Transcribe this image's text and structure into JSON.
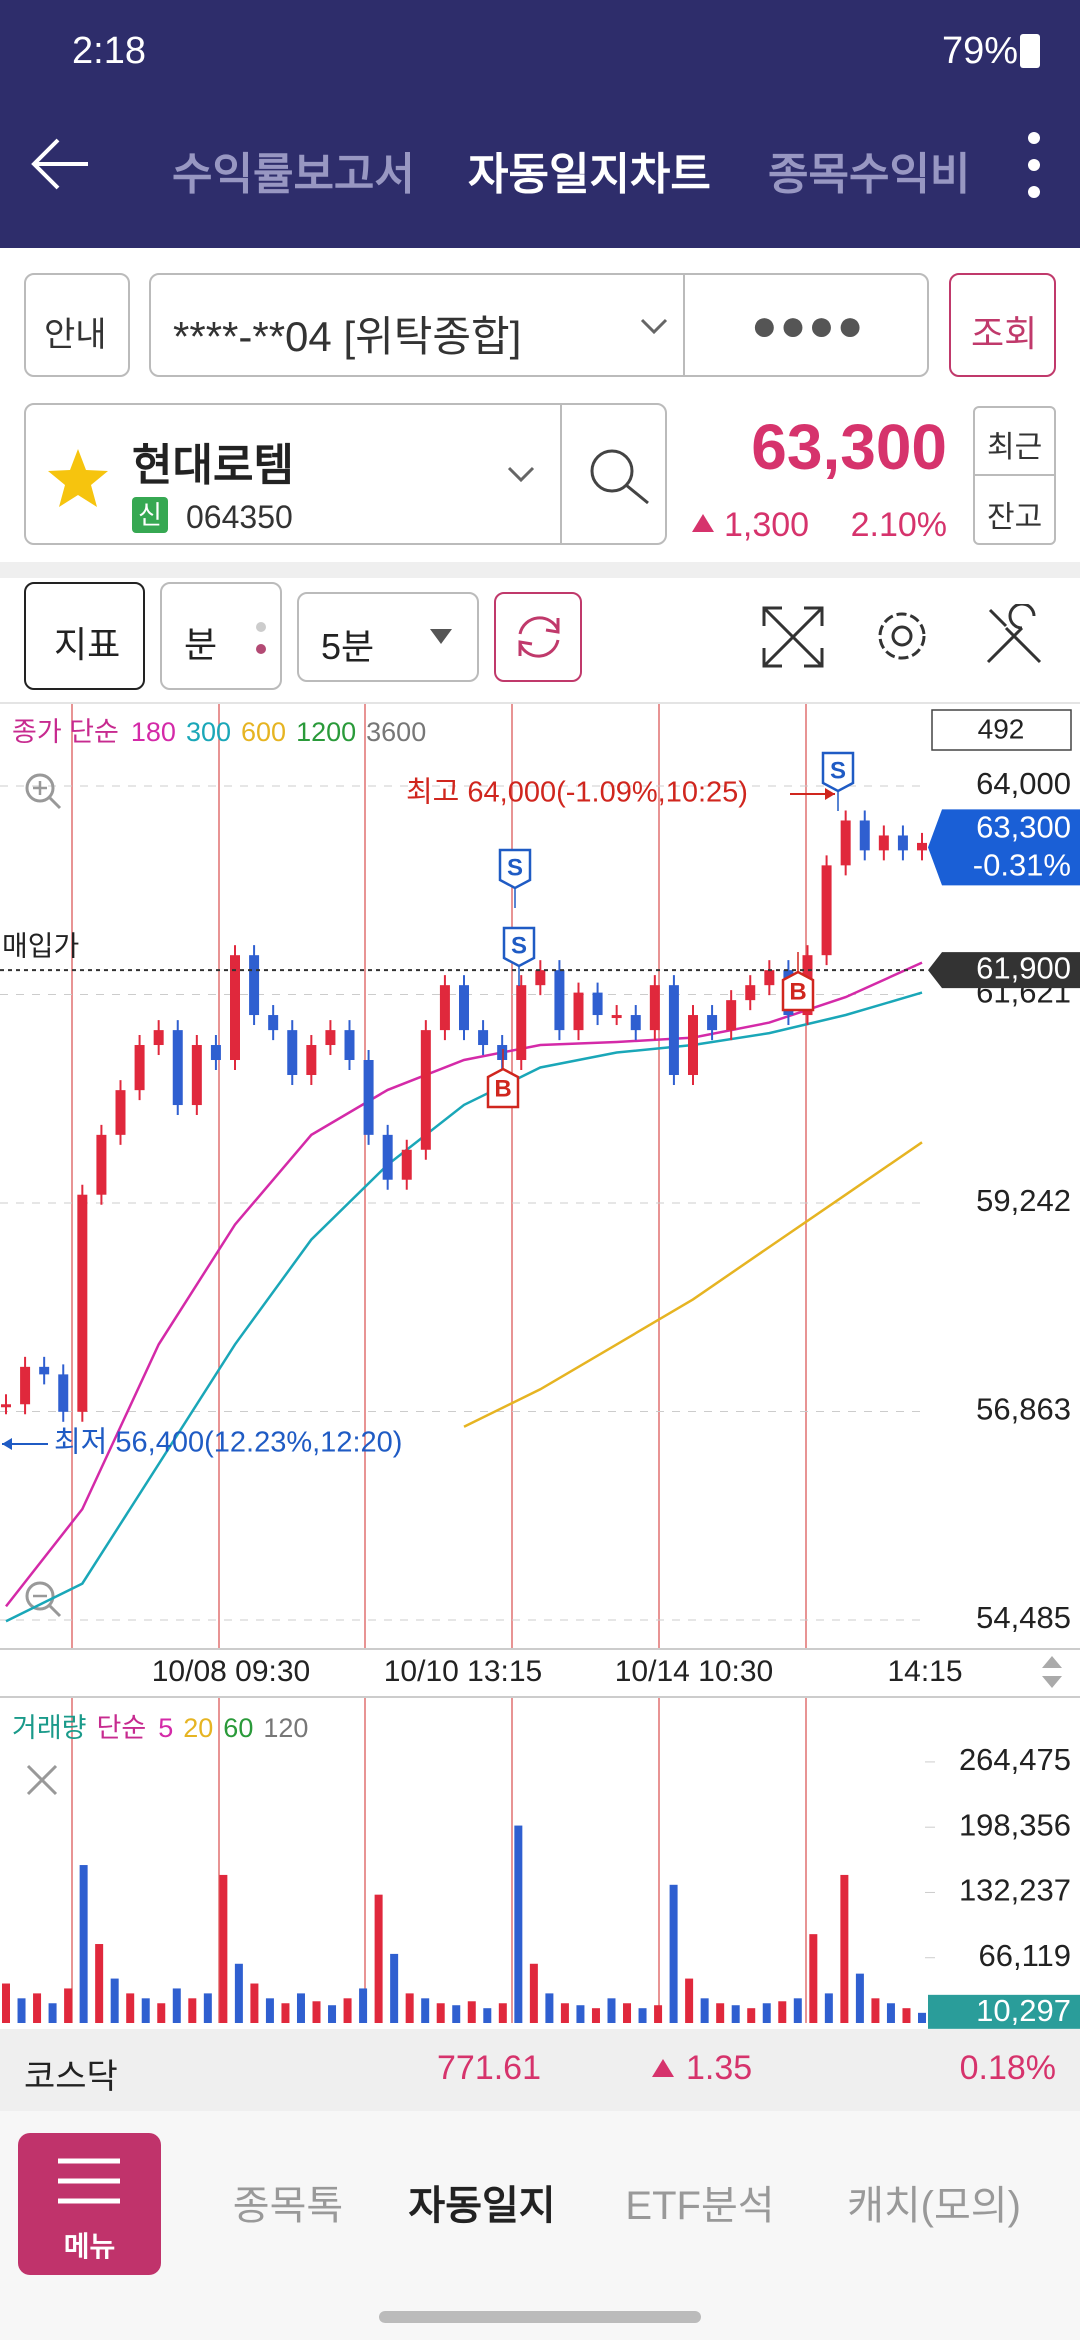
{
  "status_bar": {
    "time": "2:18",
    "battery": "79%"
  },
  "header": {
    "tabs": [
      "수익률보고서",
      "자동일지차트",
      "종목수익비"
    ]
  },
  "account": {
    "guide": "안내",
    "account_no": "****-**04 [위탁종합]",
    "password": "●●●●",
    "query": "조회"
  },
  "stock": {
    "name": "현대로템",
    "badge": "신",
    "code": "064350",
    "price": "63,300",
    "change": "1,300",
    "change_pct": "2.10%",
    "recent": "최근",
    "balance": "잔고"
  },
  "toolbar": {
    "indicator": "지표",
    "unit": "분",
    "interval": "5분"
  },
  "price_chart": {
    "legend_title": "종가 단순",
    "period_box": "492",
    "ylim": [
      54165,
      64936
    ],
    "yticks": [
      {
        "value": 64000,
        "label": "64,000"
      },
      {
        "value": 61621,
        "label": "61,621"
      },
      {
        "value": 59242,
        "label": "59,242"
      },
      {
        "value": 56863,
        "label": "56,863"
      },
      {
        "value": 54485,
        "label": "54,485"
      }
    ],
    "grid": true,
    "up_color": "#e0283c",
    "down_color": "#2f5fd0",
    "candles": [
      56946,
      57373,
      57287,
      56860,
      59337,
      60020,
      60530,
      61045,
      61215,
      60360,
      61045,
      60874,
      62070,
      61387,
      61215,
      60703,
      61045,
      61215,
      60874,
      60020,
      59508,
      59850,
      61215,
      61728,
      61215,
      61045,
      60874,
      61728,
      61899,
      61215,
      61643,
      61387,
      61387,
      61215,
      61728,
      60703,
      61387,
      61215,
      61557,
      61728,
      61899,
      61387,
      62070,
      63095,
      63607,
      63266,
      63436,
      63266,
      63351
    ],
    "ma": [
      {
        "name": "180",
        "color": "#d42aa8",
        "values": [
          54640,
          55750,
          57629,
          58996,
          60020,
          60533,
          60874,
          61045,
          61079,
          61130,
          61301,
          61592,
          61985
        ]
      },
      {
        "name": "300",
        "color": "#1aa7b8",
        "values": [
          54470,
          54900,
          56263,
          57629,
          58825,
          59679,
          60362,
          60789,
          60960,
          61045,
          61181,
          61387,
          61643
        ]
      },
      {
        "name": "600",
        "color": "#e6b422",
        "values": [
          null,
          null,
          null,
          null,
          null,
          null,
          56690,
          57117,
          57629,
          58142,
          58740,
          59337,
          59935
        ]
      },
      {
        "name": "1200",
        "color": "#2a9a3a"
      },
      {
        "name": "3600",
        "color": "#777777"
      }
    ],
    "current": {
      "value": 63300,
      "label": "63,300",
      "change": "-0.31%"
    },
    "purchase": {
      "label": "매입가",
      "value": 61900,
      "value_label": "61,900"
    },
    "high": "최고 64,000(-1.09%,10:25)",
    "low": "최저 56,400(12.23%,12:20)",
    "signals": [
      "S",
      "S",
      "B",
      "B",
      "S"
    ],
    "x_labels": [
      "10/08 09:30",
      "10/10 13:15",
      "10/14 10:30",
      "14:15"
    ]
  },
  "volume_chart": {
    "legend_title": "거래량",
    "legend_kind": "단순",
    "ma": [
      {
        "name": "5",
        "color": "#d42aa8"
      },
      {
        "name": "20",
        "color": "#e6b422"
      },
      {
        "name": "60",
        "color": "#2a9a3a"
      },
      {
        "name": "120",
        "color": "#777777"
      }
    ],
    "ylim": [
      0,
      312000
    ],
    "yticks": [
      {
        "value": 264475,
        "label": "264,475"
      },
      {
        "value": 198356,
        "label": "198,356"
      },
      {
        "value": 132237,
        "label": "132,237"
      },
      {
        "value": 66119,
        "label": "66,119"
      }
    ],
    "values": [
      40000,
      25000,
      30000,
      20000,
      35000,
      160000,
      80000,
      45000,
      30000,
      25000,
      20000,
      35000,
      25000,
      30000,
      150000,
      60000,
      40000,
      25000,
      20000,
      30000,
      22000,
      18000,
      25000,
      35000,
      130000,
      70000,
      30000,
      25000,
      20000,
      18000,
      22000,
      15000,
      20000,
      200000,
      60000,
      30000,
      20000,
      18000,
      15000,
      25000,
      20000,
      15000,
      18000,
      140000,
      45000,
      25000,
      20000,
      18000,
      15000,
      20000,
      22000,
      25000,
      90000,
      30000,
      150000,
      50000,
      25000,
      20000,
      15000,
      10297
    ],
    "current": {
      "value": 10297,
      "label": "10,297"
    }
  },
  "market": {
    "name": "코스닥",
    "value": "771.61",
    "change": "1.35",
    "change_pct": "0.18%"
  },
  "nav": {
    "menu": "메뉴",
    "items": [
      "종목톡",
      "자동일지",
      "ETF분석",
      "캐치(모의)"
    ]
  }
}
